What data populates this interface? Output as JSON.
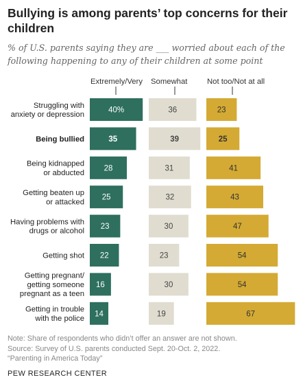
{
  "title": "Bullying is among parents’ top concerns for their children",
  "subtitle": "% of U.S. parents saying they are ___ worried about each of the following happening to any of their children at some point",
  "chart_data": {
    "type": "bar",
    "layout": "grouped-horizontal",
    "series": [
      {
        "name": "Extremely/Very",
        "color": "#2e6f5e",
        "label_color": "#ffffff",
        "values": [
          40,
          35,
          28,
          25,
          23,
          22,
          16,
          14
        ],
        "labels": [
          "40%",
          "35",
          "28",
          "25",
          "23",
          "22",
          "16",
          "14"
        ]
      },
      {
        "name": "Somewhat",
        "color": "#e0ddd0",
        "label_color": "#444444",
        "values": [
          36,
          39,
          31,
          32,
          30,
          23,
          30,
          19
        ],
        "labels": [
          "36",
          "39",
          "31",
          "32",
          "30",
          "23",
          "30",
          "19"
        ]
      },
      {
        "name": "Not too/Not at all",
        "color": "#d4aa34",
        "label_color": "#333333",
        "values": [
          23,
          25,
          41,
          43,
          47,
          54,
          54,
          67
        ],
        "labels": [
          "23",
          "25",
          "41",
          "43",
          "47",
          "54",
          "54",
          "67"
        ]
      }
    ],
    "categories": [
      [
        "Struggling with",
        "anxiety or depression"
      ],
      [
        "Being bullied"
      ],
      [
        "Being kidnapped",
        "or abducted"
      ],
      [
        "Getting beaten up",
        "or attacked"
      ],
      [
        "Having problems with",
        "drugs or alcohol"
      ],
      [
        "Getting shot"
      ],
      [
        "Getting pregnant/",
        "getting someone",
        "pregnant as a teen"
      ],
      [
        "Getting in trouble",
        "with the police"
      ]
    ],
    "highlight_index": 1
  },
  "footer": {
    "note": "Note: Share of respondents who didn’t offer an answer are not shown.",
    "source": "Source: Survey of U.S. parents conducted Sept. 20-Oct. 2, 2022.",
    "report": "“Parenting in America Today”"
  },
  "brand": "PEW RESEARCH CENTER"
}
